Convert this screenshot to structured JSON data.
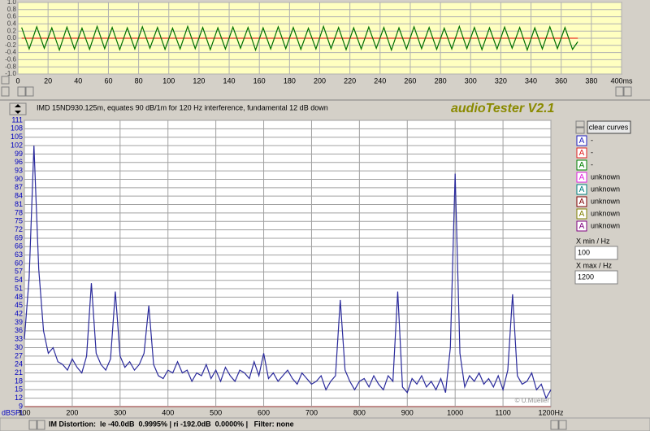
{
  "chart_data": [
    {
      "type": "line",
      "x": [
        2.5,
        7.5,
        12.5,
        17.5,
        22.5,
        27.5,
        32.5,
        37.5,
        42.5,
        47.5,
        52.5,
        57.5,
        62.5,
        67.5,
        72.5,
        77.5,
        82.5,
        87.5,
        92.5,
        97.5,
        102.5,
        107.5,
        112.5,
        117.5,
        122.5,
        127.5,
        132.5,
        137.5,
        142.5,
        147.5,
        152.5,
        157.5,
        162.5,
        167.5,
        172.5,
        177.5,
        182.5,
        187.5,
        192.5,
        197.5,
        202.5,
        207.5,
        212.5,
        217.5,
        222.5,
        227.5,
        232.5,
        237.5,
        242.5,
        247.5,
        252.5,
        257.5,
        262.5,
        267.5,
        272.5,
        277.5,
        282.5,
        287.5,
        292.5,
        297.5,
        302.5,
        307.5,
        312.5,
        317.5,
        322.5,
        327.5,
        332.5,
        337.5,
        342.5,
        347.5,
        352.5,
        357.5,
        362.5,
        367.5,
        371
      ],
      "series": [
        {
          "color": "#007000",
          "values": [
            0.3,
            -0.3,
            0.32,
            -0.28,
            0.29,
            -0.33,
            0.31,
            -0.3,
            0.28,
            -0.31,
            0.33,
            -0.29,
            0.3,
            -0.32,
            0.29,
            -0.3,
            0.32,
            -0.28,
            0.3,
            -0.31,
            0.28,
            -0.3,
            0.33,
            -0.29,
            0.3,
            -0.32,
            0.29,
            -0.3,
            0.31,
            -0.28,
            0.3,
            -0.33,
            0.29,
            -0.3,
            0.32,
            -0.29,
            0.3,
            -0.31,
            0.28,
            -0.3,
            0.33,
            -0.29,
            0.3,
            -0.32,
            0.29,
            -0.3,
            0.31,
            -0.28,
            0.3,
            -0.33,
            0.29,
            -0.3,
            0.32,
            -0.29,
            0.3,
            -0.31,
            0.28,
            -0.3,
            0.33,
            -0.29,
            0.3,
            -0.32,
            0.29,
            -0.3,
            0.31,
            -0.28,
            0.3,
            -0.33,
            0.29,
            -0.3,
            0.32,
            -0.29,
            0.3,
            -0.31,
            -0.1
          ]
        }
      ],
      "xlim": [
        0,
        400
      ],
      "ylim": [
        -1,
        1
      ],
      "xticks": [
        0,
        20,
        40,
        60,
        80,
        100,
        120,
        140,
        160,
        180,
        200,
        220,
        240,
        260,
        280,
        300,
        320,
        340,
        360,
        380,
        {
          "value": 400,
          "label": "400ms"
        }
      ],
      "yticks": [
        {
          "value": 1,
          "label": "1.0"
        },
        {
          "value": 0.8,
          "label": "0.8"
        },
        {
          "value": 0.6,
          "label": "0.6"
        },
        {
          "value": 0.4,
          "label": "0.4"
        },
        {
          "value": 0.2,
          "label": "0.2"
        },
        {
          "value": 0,
          "label": "0.0"
        },
        {
          "value": -0.2,
          "label": "-0.2"
        },
        {
          "value": -0.4,
          "label": "-0.4"
        },
        {
          "value": -0.6,
          "label": "-0.6"
        },
        {
          "value": -0.8,
          "label": "-0.8"
        },
        {
          "value": -1,
          "label": "-1.0"
        }
      ],
      "grid": true
    },
    {
      "type": "line",
      "y_label": "dBSPL",
      "annotation": "© U.Mueller",
      "x": [
        100,
        110,
        120,
        130,
        140,
        150,
        160,
        170,
        180,
        190,
        200,
        210,
        220,
        230,
        240,
        250,
        260,
        270,
        280,
        290,
        300,
        310,
        320,
        330,
        340,
        350,
        360,
        370,
        380,
        390,
        400,
        410,
        420,
        430,
        440,
        450,
        460,
        470,
        480,
        490,
        500,
        510,
        520,
        530,
        540,
        550,
        560,
        570,
        580,
        590,
        600,
        610,
        620,
        630,
        640,
        650,
        660,
        670,
        680,
        690,
        700,
        710,
        720,
        730,
        740,
        750,
        760,
        770,
        780,
        790,
        800,
        810,
        820,
        830,
        840,
        850,
        860,
        870,
        880,
        890,
        900,
        910,
        920,
        930,
        940,
        950,
        960,
        970,
        980,
        990,
        1000,
        1010,
        1020,
        1030,
        1040,
        1050,
        1060,
        1070,
        1080,
        1090,
        1100,
        1110,
        1120,
        1130,
        1140,
        1150,
        1160,
        1170,
        1180,
        1190,
        1200
      ],
      "series": [
        {
          "color": "#2a2a9c",
          "values": [
            33,
            55,
            102,
            58,
            36,
            28,
            30,
            25,
            24,
            22,
            26,
            23,
            21,
            27,
            53,
            28,
            24,
            22,
            26,
            50,
            27,
            23,
            25,
            22,
            24,
            28,
            45,
            24,
            20,
            19,
            22,
            21,
            25,
            21,
            22,
            18,
            21,
            20,
            24,
            19,
            22,
            18,
            23,
            20,
            18,
            22,
            21,
            19,
            25,
            20,
            28,
            19,
            21,
            18,
            20,
            22,
            19,
            17,
            21,
            19,
            17,
            18,
            20,
            15,
            18,
            20,
            47,
            22,
            18,
            15,
            18,
            19,
            16,
            20,
            17,
            15,
            20,
            18,
            50,
            16,
            14,
            19,
            17,
            20,
            16,
            18,
            15,
            19,
            14,
            30,
            92,
            28,
            16,
            20,
            18,
            21,
            17,
            19,
            16,
            20,
            15,
            22,
            49,
            20,
            17,
            18,
            21,
            15,
            17,
            12,
            15
          ]
        }
      ],
      "xlim": [
        100,
        1200
      ],
      "ylim": [
        9,
        111
      ],
      "xticks": [
        100,
        200,
        300,
        400,
        500,
        600,
        700,
        800,
        900,
        1000,
        1100,
        {
          "value": 1200,
          "label": "1200Hz"
        }
      ],
      "yticks": [
        9,
        12,
        15,
        18,
        21,
        24,
        27,
        30,
        33,
        36,
        39,
        42,
        45,
        48,
        51,
        54,
        57,
        60,
        63,
        66,
        69,
        72,
        75,
        78,
        81,
        84,
        87,
        90,
        93,
        96,
        99,
        102,
        105,
        108,
        111
      ],
      "grid": true
    }
  ],
  "toolbar": {
    "caption": "IMD 15ND930.125m, equates 90 dB/1m for 120 Hz interference, fundamental 12 dB down",
    "app_title": "audioTester V2.1"
  },
  "side_panel": {
    "clear_button": "clear curves",
    "curves": [
      {
        "icon": "A",
        "color": "#2020c0",
        "label": "-"
      },
      {
        "icon": "A",
        "color": "#e02020",
        "label": "-"
      },
      {
        "icon": "A",
        "color": "#008000",
        "label": "-"
      },
      {
        "icon": "A",
        "color": "#e020e0",
        "label": "unknown"
      },
      {
        "icon": "A",
        "color": "#008080",
        "label": "unknown"
      },
      {
        "icon": "A",
        "color": "#800000",
        "label": "unknown"
      },
      {
        "icon": "A",
        "color": "#808000",
        "label": "unknown"
      },
      {
        "icon": "A",
        "color": "#800080",
        "label": "unknown"
      }
    ],
    "x_min": {
      "label": "X min / Hz",
      "value": 100
    },
    "x_max": {
      "label": "X max / Hz",
      "value": 1200
    }
  },
  "status_bar": {
    "text": "IM Distortion:  le -40.0dB  0.9995% | ri -192.0dB  0.0000% |   Filter: none"
  }
}
